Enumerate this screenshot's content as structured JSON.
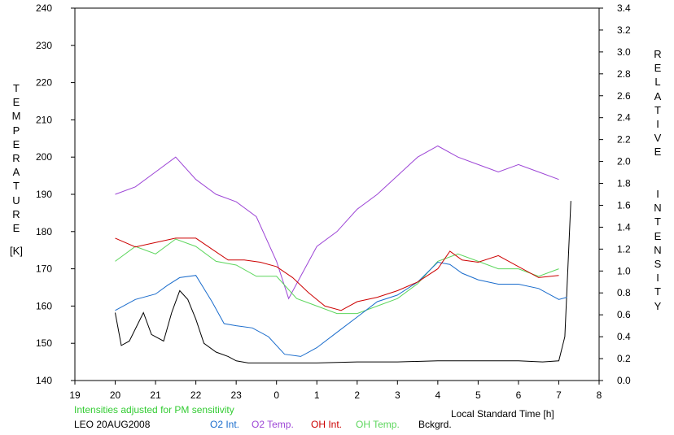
{
  "chart_data": {
    "type": "line",
    "y_left_label": "TEMPERATURE",
    "y_left_unit": "[K]",
    "y_right_label": "RELATIVE  INTENSITY",
    "x_label": "Local Standard Time [h]",
    "note": "Intensities adjusted for PM sensitivity",
    "station": "LEO 20AUG2008",
    "x_ticks": [
      "19",
      "20",
      "21",
      "22",
      "23",
      "0",
      "1",
      "2",
      "3",
      "4",
      "5",
      "6",
      "7",
      "8"
    ],
    "y_left_ticks": [
      "140",
      "150",
      "160",
      "170",
      "180",
      "190",
      "200",
      "210",
      "220",
      "230",
      "240"
    ],
    "y_right_ticks": [
      "0.0",
      "0.2",
      "0.4",
      "0.6",
      "0.8",
      "1.0",
      "1.2",
      "1.4",
      "1.6",
      "1.8",
      "2.0",
      "2.2",
      "2.4",
      "2.6",
      "2.8",
      "3.0",
      "3.2",
      "3.4"
    ],
    "x_range": [
      19,
      32
    ],
    "y_left_range": [
      140,
      240
    ],
    "y_right_range": [
      0.0,
      3.4
    ],
    "grid": false,
    "series": [
      {
        "name": "O2 Int.",
        "color": "#1a6ccc",
        "axis": "right",
        "x": [
          20.0,
          20.5,
          21.0,
          21.3,
          21.6,
          22.0,
          22.4,
          22.7,
          23.0,
          23.4,
          23.8,
          24.2,
          24.6,
          25.0,
          25.5,
          26.0,
          26.5,
          27.0,
          27.5,
          28.0,
          28.3,
          28.6,
          29.0,
          29.5,
          30.0,
          30.5,
          31.0,
          31.2
        ],
        "y": [
          0.64,
          0.74,
          0.79,
          0.87,
          0.94,
          0.96,
          0.72,
          0.52,
          0.5,
          0.48,
          0.4,
          0.24,
          0.22,
          0.3,
          0.44,
          0.58,
          0.72,
          0.78,
          0.9,
          1.08,
          1.06,
          0.98,
          0.92,
          0.88,
          0.88,
          0.84,
          0.74,
          0.76
        ]
      },
      {
        "name": "O2 Temp.",
        "color": "#9d46d6",
        "axis": "left",
        "x": [
          20.0,
          20.5,
          21.0,
          21.5,
          22.0,
          22.5,
          23.0,
          23.5,
          24.0,
          24.3,
          24.6,
          25.0,
          25.5,
          26.0,
          26.5,
          27.0,
          27.5,
          28.0,
          28.5,
          29.0,
          29.5,
          30.0,
          30.5,
          31.0
        ],
        "y": [
          190,
          192,
          196,
          200,
          194,
          190,
          188,
          184,
          172,
          162,
          168,
          176,
          180,
          186,
          190,
          195,
          200,
          203,
          200,
          198,
          196,
          198,
          196,
          194
        ]
      },
      {
        "name": "OH Int.",
        "color": "#cc0000",
        "axis": "right",
        "x": [
          20.0,
          20.5,
          21.0,
          21.5,
          22.0,
          22.4,
          22.8,
          23.2,
          23.6,
          24.0,
          24.4,
          24.8,
          25.2,
          25.6,
          26.0,
          26.5,
          27.0,
          27.5,
          28.0,
          28.3,
          28.6,
          29.0,
          29.5,
          30.0,
          30.5,
          31.0
        ],
        "y": [
          1.3,
          1.22,
          1.26,
          1.3,
          1.3,
          1.2,
          1.1,
          1.1,
          1.08,
          1.04,
          0.94,
          0.8,
          0.68,
          0.64,
          0.72,
          0.76,
          0.82,
          0.9,
          1.02,
          1.18,
          1.1,
          1.08,
          1.14,
          1.04,
          0.94,
          0.96
        ]
      },
      {
        "name": "OH Temp.",
        "color": "#5cd65c",
        "axis": "left",
        "x": [
          20.0,
          20.5,
          21.0,
          21.5,
          22.0,
          22.5,
          23.0,
          23.5,
          24.0,
          24.5,
          25.0,
          25.5,
          26.0,
          26.5,
          27.0,
          27.5,
          28.0,
          28.5,
          29.0,
          29.5,
          30.0,
          30.5,
          31.0
        ],
        "y": [
          172,
          176,
          174,
          178,
          176,
          172,
          171,
          168,
          168,
          162,
          160,
          158,
          158,
          160,
          162,
          166,
          172,
          174,
          172,
          170,
          170,
          168,
          170
        ]
      },
      {
        "name": "Bckgrd.",
        "color": "#000000",
        "axis": "right",
        "x": [
          20.0,
          20.15,
          20.35,
          20.7,
          20.9,
          21.2,
          21.4,
          21.6,
          21.8,
          22.0,
          22.2,
          22.5,
          22.8,
          23.0,
          23.3,
          23.7,
          24.2,
          25.0,
          26.0,
          27.0,
          28.0,
          29.0,
          30.0,
          30.6,
          31.0,
          31.15,
          31.3
        ],
        "y": [
          0.62,
          0.32,
          0.36,
          0.62,
          0.42,
          0.36,
          0.62,
          0.82,
          0.74,
          0.56,
          0.34,
          0.26,
          0.22,
          0.18,
          0.16,
          0.16,
          0.16,
          0.16,
          0.17,
          0.17,
          0.18,
          0.18,
          0.18,
          0.17,
          0.18,
          0.4,
          1.64
        ]
      }
    ]
  }
}
